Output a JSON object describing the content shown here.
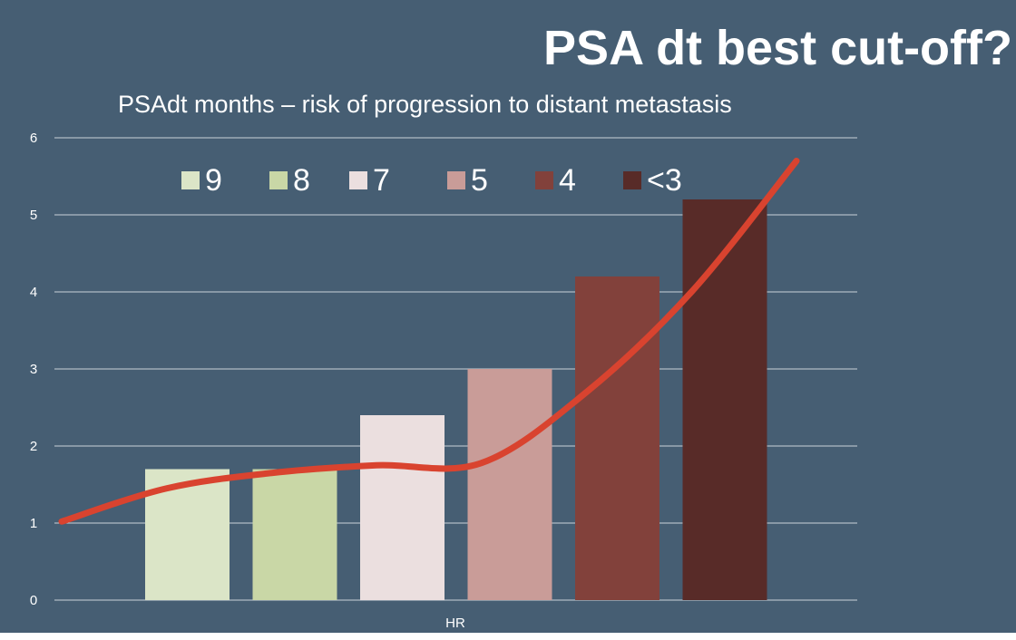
{
  "slide": {
    "title": "PSA dt best cut-off?"
  },
  "chart_data": {
    "type": "bar",
    "title": "PSAdt months – risk of progression to distant metastasis",
    "xlabel": "HR",
    "ylabel": "",
    "ylim": [
      0,
      6
    ],
    "yticks": [
      "0",
      "1",
      "2",
      "3",
      "4",
      "5",
      "6"
    ],
    "grid": true,
    "legend_position": "top",
    "series": [
      {
        "name": "9",
        "value": 1.7,
        "color": "#dbe5c7"
      },
      {
        "name": "8",
        "value": 1.7,
        "color": "#c9d7a6"
      },
      {
        "name": "7",
        "value": 2.4,
        "color": "#ebdfdf"
      },
      {
        "name": "5",
        "value": 3.0,
        "color": "#c99c98"
      },
      {
        "name": "4",
        "value": 4.2,
        "color": "#82413b"
      },
      {
        "name": "<3",
        "value": 5.2,
        "color": "#582b28"
      }
    ],
    "trend_line": {
      "color": "#d9432f",
      "points": [
        [
          0,
          1.02
        ],
        [
          1,
          1.45
        ],
        [
          2,
          1.65
        ],
        [
          3,
          1.75
        ],
        [
          4,
          1.78
        ],
        [
          5,
          2.7
        ],
        [
          6,
          4.0
        ],
        [
          7,
          5.7
        ]
      ]
    }
  }
}
